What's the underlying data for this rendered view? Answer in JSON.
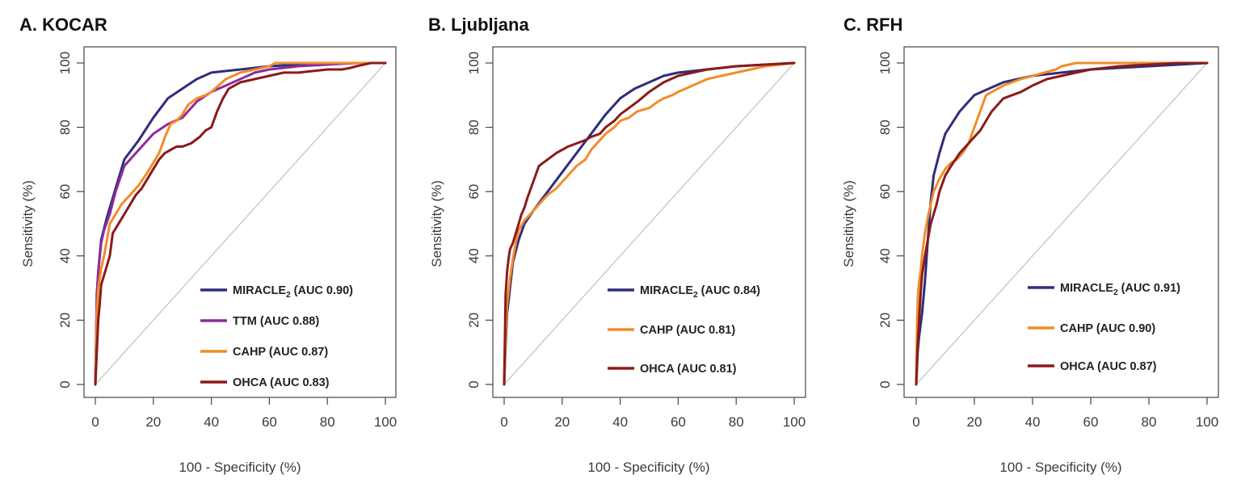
{
  "chart_data": [
    {
      "type": "line",
      "title": "A. KOCAR",
      "xlabel": "100 - Specificity (%)",
      "ylabel": "Sensitivity (%)",
      "xlim": [
        0,
        100
      ],
      "ylim": [
        0,
        100
      ],
      "xticks": [
        0,
        20,
        40,
        60,
        80,
        100
      ],
      "yticks": [
        0,
        20,
        40,
        60,
        80,
        100
      ],
      "grid": false,
      "reference_line": "diagonal",
      "legend_position": "bottom-right",
      "series": [
        {
          "name": "MIRACLE",
          "name_subscript": "2",
          "name_suffix": " (AUC 0.90)",
          "color": "#2e2d7c",
          "x": [
            0,
            0.5,
            1,
            2,
            4,
            6,
            8,
            10,
            15,
            20,
            25,
            30,
            35,
            40,
            45,
            50,
            55,
            60,
            70,
            80,
            90,
            100
          ],
          "y": [
            0,
            28,
            35,
            45,
            52,
            58,
            64,
            70,
            76,
            83,
            89,
            92,
            95,
            97,
            97.5,
            98,
            98.5,
            99,
            99.5,
            99.7,
            100,
            100
          ]
        },
        {
          "name": "TTM",
          "name_suffix": " (AUC 0.88)",
          "color": "#8e2a9e",
          "x": [
            0,
            0.5,
            1,
            2,
            3,
            5,
            7,
            10,
            15,
            20,
            25,
            30,
            35,
            40,
            45,
            50,
            55,
            60,
            70,
            80,
            90,
            100
          ],
          "y": [
            0,
            25,
            35,
            44,
            48,
            53,
            60,
            68,
            73,
            78,
            81,
            83,
            88,
            91,
            93,
            95,
            97,
            98,
            99,
            99.5,
            100,
            100
          ]
        },
        {
          "name": "CAHP",
          "name_suffix": " (AUC 0.87)",
          "color": "#f28c28",
          "x": [
            0,
            0.5,
            1,
            2,
            3,
            4,
            5,
            7,
            9,
            11,
            13,
            15,
            18,
            20,
            22,
            24,
            26,
            28,
            30,
            32,
            35,
            38,
            40,
            45,
            50,
            55,
            60,
            62,
            70,
            80,
            90,
            100
          ],
          "y": [
            0,
            22,
            30,
            36,
            40,
            45,
            50,
            53,
            56,
            58,
            60,
            62,
            66,
            69,
            72,
            77,
            81,
            82,
            84,
            87,
            89,
            90,
            91,
            95,
            97,
            98,
            99,
            100,
            100,
            100,
            100,
            100
          ]
        },
        {
          "name": "OHCA",
          "name_suffix": " (AUC 0.83)",
          "color": "#8b1a1a",
          "x": [
            0,
            0.5,
            1,
            1.5,
            2,
            3,
            4,
            5,
            6,
            8,
            10,
            12,
            14,
            16,
            18,
            20,
            22,
            24,
            26,
            28,
            30,
            33,
            36,
            38,
            40,
            42,
            44,
            46,
            50,
            55,
            60,
            65,
            70,
            80,
            85,
            88,
            90,
            95,
            100
          ],
          "y": [
            0,
            10,
            20,
            25,
            31,
            34,
            37,
            40,
            47,
            50,
            53,
            56,
            59,
            61,
            64,
            67,
            70,
            72,
            73,
            74,
            74,
            75,
            77,
            79,
            80,
            85,
            89,
            92,
            94,
            95,
            96,
            97,
            97,
            98,
            98,
            98.5,
            99,
            100,
            100
          ]
        }
      ]
    },
    {
      "type": "line",
      "title": "B. Ljubljana",
      "xlabel": "100 - Specificity (%)",
      "ylabel": "Sensitivity (%)",
      "xlim": [
        0,
        100
      ],
      "ylim": [
        0,
        100
      ],
      "xticks": [
        0,
        20,
        40,
        60,
        80,
        100
      ],
      "yticks": [
        0,
        20,
        40,
        60,
        80,
        100
      ],
      "grid": false,
      "reference_line": "diagonal",
      "legend_position": "bottom-right",
      "series": [
        {
          "name": "MIRACLE",
          "name_subscript": "2",
          "name_suffix": " (AUC 0.84)",
          "color": "#2e2d7c",
          "x": [
            0,
            0.5,
            1,
            2,
            3,
            5,
            7,
            10,
            15,
            20,
            25,
            30,
            35,
            40,
            45,
            50,
            55,
            60,
            70,
            80,
            90,
            100
          ],
          "y": [
            0,
            12,
            22,
            30,
            38,
            45,
            50,
            54,
            60,
            66,
            72,
            78,
            84,
            89,
            92,
            94,
            96,
            97,
            98,
            99,
            99.5,
            100
          ]
        },
        {
          "name": "CAHP",
          "name_suffix": " (AUC 0.81)",
          "color": "#f28c28",
          "x": [
            0,
            0.5,
            1,
            2,
            3,
            4,
            5,
            7,
            9,
            11,
            13,
            15,
            18,
            20,
            22,
            25,
            28,
            30,
            33,
            35,
            38,
            40,
            43,
            46,
            50,
            53,
            55,
            58,
            60,
            65,
            70,
            75,
            80,
            85,
            90,
            95,
            100
          ],
          "y": [
            0,
            15,
            25,
            33,
            39,
            44,
            48,
            51,
            53,
            55,
            57,
            59,
            61,
            63,
            65,
            68,
            70,
            73,
            76,
            78,
            80,
            82,
            83,
            85,
            86,
            88,
            89,
            90,
            91,
            93,
            95,
            96,
            97,
            98,
            99,
            99.5,
            100
          ]
        },
        {
          "name": "OHCA",
          "name_suffix": " (AUC 0.81)",
          "color": "#8b1a1a",
          "x": [
            0,
            0.5,
            1,
            1.5,
            2,
            3,
            4,
            5,
            6,
            7,
            8,
            10,
            12,
            15,
            18,
            20,
            22,
            25,
            28,
            30,
            33,
            35,
            38,
            40,
            43,
            46,
            50,
            55,
            60,
            65,
            70,
            80,
            90,
            100
          ],
          "y": [
            0,
            28,
            35,
            39,
            42,
            44,
            47,
            50,
            53,
            55,
            58,
            63,
            68,
            70,
            72,
            73,
            74,
            75,
            76,
            77,
            78,
            80,
            82,
            84,
            86,
            88,
            91,
            94,
            96,
            97,
            98,
            99,
            99.5,
            100
          ]
        }
      ]
    },
    {
      "type": "line",
      "title": "C. RFH",
      "xlabel": "100 - Specificity (%)",
      "ylabel": "Sensitivity (%)",
      "xlim": [
        0,
        100
      ],
      "ylim": [
        0,
        100
      ],
      "xticks": [
        0,
        20,
        40,
        60,
        80,
        100
      ],
      "yticks": [
        0,
        20,
        40,
        60,
        80,
        100
      ],
      "grid": false,
      "reference_line": "diagonal",
      "legend_position": "bottom-right",
      "series": [
        {
          "name": "MIRACLE",
          "name_subscript": "2",
          "name_suffix": " (AUC 0.91)",
          "color": "#2e2d7c",
          "x": [
            0,
            0.5,
            1,
            2,
            3,
            4,
            5,
            6,
            8,
            10,
            15,
            20,
            25,
            30,
            35,
            40,
            50,
            60,
            70,
            80,
            90,
            100
          ],
          "y": [
            0,
            10,
            15,
            22,
            32,
            45,
            57,
            65,
            72,
            78,
            85,
            90,
            92,
            94,
            95,
            96,
            97,
            98,
            98.5,
            99,
            99.5,
            100
          ]
        },
        {
          "name": "CAHP",
          "name_suffix": " (AUC 0.90)",
          "color": "#f28c28",
          "x": [
            0,
            0.3,
            0.6,
            1,
            1.5,
            2,
            3,
            4,
            5,
            6,
            8,
            10,
            12,
            14,
            16,
            18,
            20,
            22,
            24,
            26,
            28,
            30,
            33,
            36,
            40,
            44,
            48,
            50,
            55,
            60,
            70,
            80,
            90,
            100
          ],
          "y": [
            0,
            20,
            28,
            32,
            35,
            40,
            47,
            52,
            56,
            60,
            64,
            67,
            69,
            70,
            72,
            75,
            80,
            85,
            90,
            91,
            92,
            93,
            94,
            95,
            96,
            97,
            98,
            99,
            100,
            100,
            100,
            100,
            100,
            100
          ]
        },
        {
          "name": "OHCA",
          "name_suffix": " (AUC 0.87)",
          "color": "#8b1a1a",
          "x": [
            0,
            0.5,
            1,
            1.5,
            2,
            3,
            4,
            5,
            6,
            7,
            8,
            10,
            12,
            15,
            18,
            20,
            22,
            24,
            26,
            28,
            30,
            33,
            36,
            40,
            45,
            50,
            55,
            60,
            70,
            80,
            90,
            100
          ],
          "y": [
            0,
            12,
            20,
            28,
            34,
            40,
            45,
            50,
            53,
            56,
            60,
            65,
            68,
            72,
            75,
            77,
            79,
            82,
            85,
            87,
            89,
            90,
            91,
            93,
            95,
            96,
            97,
            98,
            99,
            99.5,
            100,
            100
          ]
        }
      ]
    }
  ]
}
